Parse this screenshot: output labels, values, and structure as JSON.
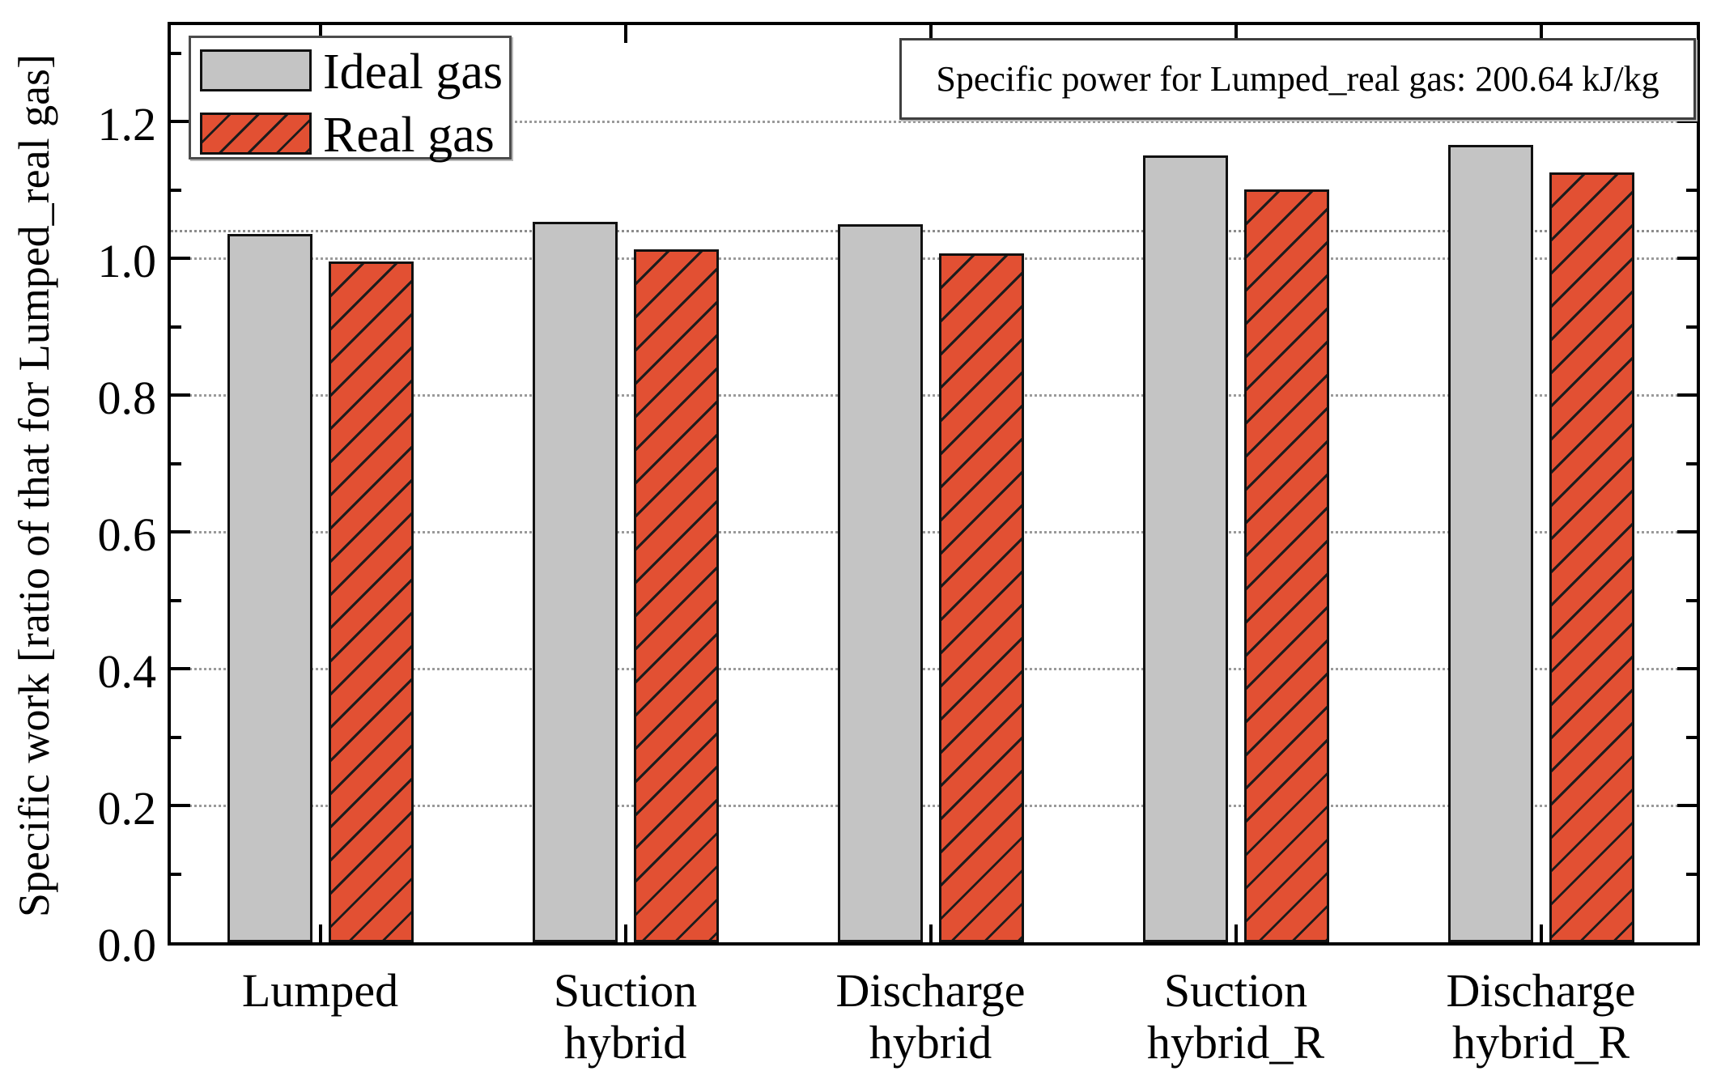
{
  "chart_data": {
    "type": "bar",
    "title": "",
    "categories": [
      "Lumped",
      "Suction\nhybrid",
      "Discharge\nhybrid",
      "Suction\nhybrid_R",
      "Discharge\nhybrid_R"
    ],
    "series": [
      {
        "name": "Ideal gas",
        "color": "#c4c4c4",
        "hatch": "none",
        "values": [
          1.04,
          1.058,
          1.055,
          1.155,
          1.17
        ]
      },
      {
        "name": "Real gas",
        "color": "#e25033",
        "hatch": "diagonal-forward",
        "values": [
          1.0,
          1.018,
          1.012,
          1.105,
          1.13
        ]
      }
    ],
    "xlabel": "",
    "ylabel": "Specific work [ratio of that for Lumped_real gas]",
    "ylim": [
      0,
      1.35
    ],
    "yticks_major": [
      0.0,
      0.2,
      0.4,
      0.6,
      0.8,
      1.0,
      1.2
    ],
    "ytick_labels": [
      "0.0",
      "0.2",
      "0.4",
      "0.6",
      "0.8",
      "1.0",
      "1.2"
    ],
    "yticks_minor": [
      0.1,
      0.3,
      0.5,
      0.7,
      0.9,
      1.1,
      1.3
    ],
    "gridlines": [
      0.2,
      0.4,
      0.6,
      0.8,
      1.0,
      1.2
    ],
    "reference_line": 1.04,
    "grid": "horizontal-dotted",
    "legend_position": "top-left",
    "annotation": "Specific power for Lumped_real gas: 200.64 kJ/kg",
    "colors": {
      "axis": "#000000",
      "grid_line": "#9a9a9a",
      "bar_border": "#111111",
      "ideal_gas_fill": "#c4c4c4",
      "real_gas_fill": "#e25033",
      "hatch_line": "#1c1c1c"
    }
  }
}
